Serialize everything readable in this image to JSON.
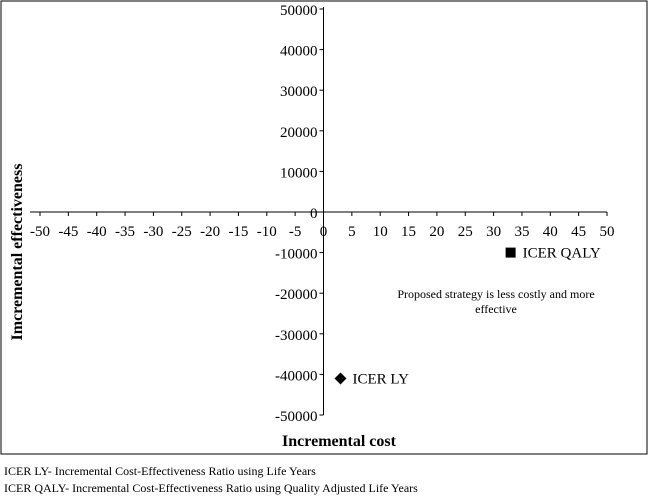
{
  "chart_data": {
    "type": "scatter",
    "xlabel": "Incremental cost",
    "ylabel": "Imcremental effectiveness",
    "xlim": [
      -50,
      50
    ],
    "ylim": [
      -50000,
      50000
    ],
    "x_ticks": [
      "-50",
      "-45",
      "-40",
      "-35",
      "-30",
      "-25",
      "-20",
      "-15",
      "-10",
      "-5",
      "0",
      "5",
      "10",
      "15",
      "20",
      "25",
      "30",
      "35",
      "40",
      "45",
      "50"
    ],
    "y_ticks": [
      "50000",
      "40000",
      "30000",
      "20000",
      "10000",
      "0",
      "-10000",
      "-20000",
      "-30000",
      "-40000",
      "-50000"
    ],
    "grid": false,
    "axes_cross_at_origin": true,
    "points": [
      {
        "label": "ICER QALY",
        "x": 33,
        "y": -10000,
        "marker": "square"
      },
      {
        "label": "ICER LY",
        "x": 3,
        "y": -41000,
        "marker": "diamond"
      }
    ],
    "annotation": [
      "Proposed strategy is less costly and more",
      "effective"
    ]
  },
  "footnotes": [
    "ICER LY- Incremental Cost-Effectiveness Ratio using Life Years",
    "ICER QALY- Incremental Cost-Effectiveness Ratio using Quality Adjusted Life Years"
  ]
}
